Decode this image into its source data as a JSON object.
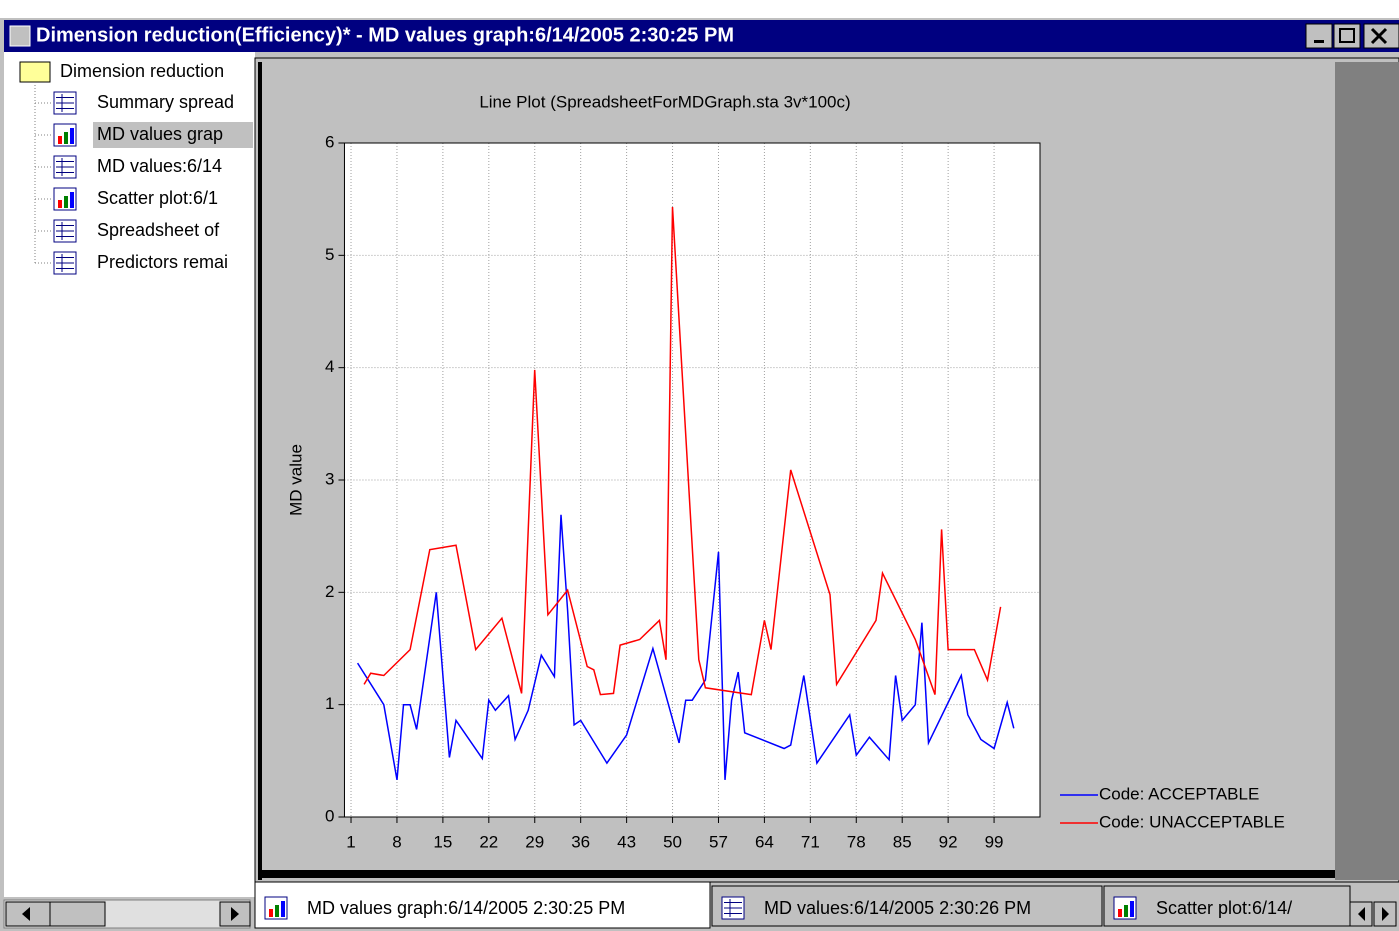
{
  "window": {
    "title": "Dimension reduction(Efficiency)* - MD values graph:6/14/2005 2:30:25 PM"
  },
  "tree": {
    "root": "Dimension reduction",
    "items": [
      "Summary spread",
      "MD values grap",
      "MD values:6/14",
      "Scatter plot:6/1",
      "Spreadsheet of",
      "Predictors remai"
    ]
  },
  "tabs": [
    "MD values graph:6/14/2005 2:30:25 PM",
    "MD values:6/14/2005 2:30:26 PM",
    "Scatter plot:6/14/"
  ],
  "chart_data": {
    "type": "line",
    "title": "Line Plot (SpreadsheetForMDGraph.sta 3v*100c)",
    "y_label": "MD value",
    "xlim": [
      0,
      106
    ],
    "xticks": [
      1,
      8,
      15,
      22,
      29,
      36,
      43,
      50,
      57,
      64,
      71,
      78,
      85,
      92,
      99
    ],
    "ylim": [
      0,
      6
    ],
    "yticks": [
      0,
      1,
      2,
      3,
      4,
      5,
      6
    ],
    "grid": true,
    "legend": "bottom-right",
    "series": [
      {
        "name": "Code: ACCEPTABLE",
        "color": "#0000ff",
        "x": [
          2,
          6,
          8,
          9,
          10,
          11,
          14,
          16,
          17,
          21,
          22,
          23,
          25,
          26,
          28,
          30,
          32,
          33,
          34,
          35,
          36,
          40,
          43,
          47,
          51,
          52,
          53,
          55,
          57,
          58,
          59,
          60,
          61,
          67,
          68,
          70,
          72,
          77,
          78,
          80,
          83,
          84,
          85,
          87,
          88,
          89,
          94,
          95,
          97,
          99,
          101,
          102
        ],
        "values": [
          1.37,
          1.0,
          0.33,
          1.0,
          1.0,
          0.78,
          2.0,
          0.53,
          0.86,
          0.52,
          1.04,
          0.95,
          1.08,
          0.69,
          0.95,
          1.44,
          1.25,
          2.69,
          1.84,
          0.82,
          0.86,
          0.48,
          0.73,
          1.5,
          0.66,
          1.04,
          1.04,
          1.22,
          2.36,
          0.33,
          1.04,
          1.29,
          0.75,
          0.61,
          0.64,
          1.26,
          0.48,
          0.91,
          0.55,
          0.71,
          0.51,
          1.26,
          0.86,
          1.0,
          1.73,
          0.66,
          1.26,
          0.91,
          0.69,
          0.61,
          1.02,
          0.79
        ]
      },
      {
        "name": "Code: UNACCEPTABLE",
        "color": "#ff0000",
        "x": [
          3,
          4,
          6,
          10,
          13,
          17,
          20,
          24,
          27,
          29,
          31,
          34,
          37,
          38,
          39,
          41,
          42,
          45,
          48,
          49,
          50,
          54,
          55,
          62,
          64,
          65,
          68,
          74,
          75,
          81,
          82,
          87,
          90,
          91,
          92,
          96,
          98,
          100
        ],
        "values": [
          1.18,
          1.28,
          1.26,
          1.49,
          2.38,
          2.42,
          1.49,
          1.77,
          1.1,
          3.98,
          1.8,
          2.02,
          1.34,
          1.31,
          1.09,
          1.1,
          1.53,
          1.58,
          1.75,
          1.4,
          5.43,
          1.4,
          1.15,
          1.09,
          1.75,
          1.49,
          3.09,
          1.98,
          1.18,
          1.75,
          2.17,
          1.58,
          1.09,
          2.56,
          1.49,
          1.49,
          1.22,
          1.87
        ]
      }
    ]
  }
}
